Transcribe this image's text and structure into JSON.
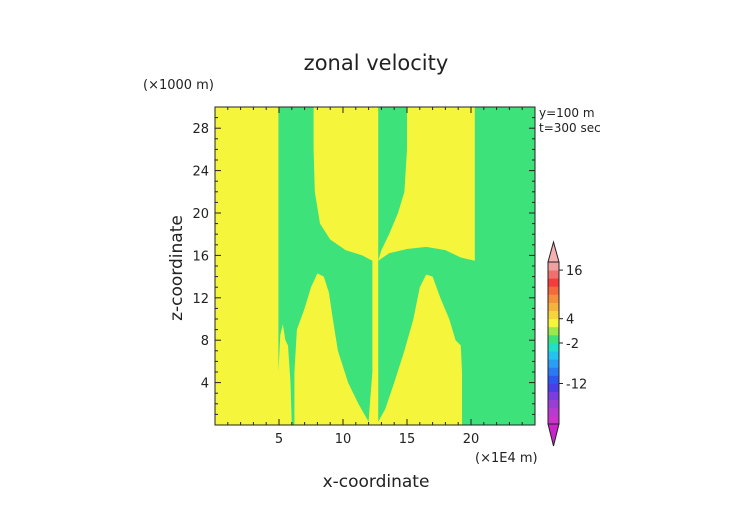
{
  "chart_data": {
    "type": "heatmap",
    "title": "zonal velocity",
    "xlabel": "x-coordinate",
    "ylabel": "z-coordinate",
    "x_unit": "(×1E4 m)",
    "y_unit": "(×1000 m)",
    "annotations": [
      "y=100 m",
      "t=300 sec"
    ],
    "xlim": [
      0,
      25
    ],
    "ylim": [
      0,
      30
    ],
    "x_ticks": [
      5,
      10,
      15,
      20
    ],
    "y_ticks": [
      4,
      8,
      12,
      16,
      20,
      24,
      28
    ],
    "field_colors": {
      "positive": "#f5f53c",
      "negative": "#3ee27b"
    },
    "colorbar": {
      "tick_labels": [
        "16",
        "4",
        "-2",
        "-12"
      ],
      "levels": [
        {
          "value": -20,
          "color": "#cc33cc"
        },
        {
          "value": -18,
          "color": "#b83ad0"
        },
        {
          "value": -16,
          "color": "#9a3ed8"
        },
        {
          "value": -14,
          "color": "#7a3ee0"
        },
        {
          "value": -12,
          "color": "#4a3ee8"
        },
        {
          "value": -10,
          "color": "#2e56f0"
        },
        {
          "value": -8,
          "color": "#2a7af4"
        },
        {
          "value": -6,
          "color": "#2a9ef4"
        },
        {
          "value": -4,
          "color": "#22c4ee"
        },
        {
          "value": -2,
          "color": "#22e0c8"
        },
        {
          "value": 0,
          "color": "#3ee27b"
        },
        {
          "value": 2,
          "color": "#9ae84a"
        },
        {
          "value": 4,
          "color": "#f5f53c"
        },
        {
          "value": 6,
          "color": "#f5d43c"
        },
        {
          "value": 8,
          "color": "#f5b23c"
        },
        {
          "value": 10,
          "color": "#f5903c"
        },
        {
          "value": 12,
          "color": "#f56a3c"
        },
        {
          "value": 14,
          "color": "#f53c3c"
        },
        {
          "value": 16,
          "color": "#f07070"
        },
        {
          "value": 18,
          "color": "#f0a0a0"
        }
      ],
      "low_extend_color": "#cc22cc",
      "high_extend_color": "#f5b0b0"
    },
    "regions": [
      {
        "sign": "negative",
        "polygon": [
          [
            4.95,
            30
          ],
          [
            7.7,
            30
          ],
          [
            7.7,
            26
          ],
          [
            7.8,
            22
          ],
          [
            8.2,
            19
          ],
          [
            9.0,
            17.5
          ],
          [
            10.2,
            16.5
          ],
          [
            11.5,
            16
          ],
          [
            12.3,
            15.5
          ],
          [
            12.3,
            5
          ],
          [
            12.1,
            2
          ],
          [
            12.0,
            0.3
          ],
          [
            11.2,
            2
          ],
          [
            10.4,
            4
          ],
          [
            9.6,
            7
          ],
          [
            9.2,
            10
          ],
          [
            8.9,
            12.5
          ],
          [
            8.5,
            14
          ],
          [
            8.0,
            14.3
          ],
          [
            7.5,
            13
          ],
          [
            7.0,
            11
          ],
          [
            6.4,
            9
          ],
          [
            6.2,
            5
          ],
          [
            6.2,
            0
          ],
          [
            6.0,
            0
          ],
          [
            5.9,
            4
          ],
          [
            5.7,
            7.5
          ],
          [
            5.5,
            8
          ],
          [
            5.3,
            9.5
          ],
          [
            5.1,
            8.5
          ],
          [
            4.95,
            5
          ],
          [
            4.95,
            0
          ],
          [
            4.95,
            30
          ]
        ]
      },
      {
        "sign": "negative",
        "polygon": [
          [
            12.75,
            30
          ],
          [
            15.0,
            30
          ],
          [
            15.0,
            26
          ],
          [
            14.8,
            22
          ],
          [
            14.3,
            20
          ],
          [
            13.6,
            18
          ],
          [
            13.0,
            16.5
          ],
          [
            12.75,
            15.5
          ]
        ]
      },
      {
        "sign": "negative",
        "polygon": [
          [
            12.75,
            15.5
          ],
          [
            13.6,
            16.2
          ],
          [
            15.0,
            16.6
          ],
          [
            16.5,
            16.8
          ],
          [
            18.0,
            16.5
          ],
          [
            19.2,
            15.8
          ],
          [
            20.3,
            15.5
          ],
          [
            20.3,
            30
          ],
          [
            25,
            30
          ],
          [
            25,
            0
          ],
          [
            19.3,
            0
          ],
          [
            19.3,
            5
          ],
          [
            19.2,
            7.5
          ],
          [
            18.8,
            8
          ],
          [
            18.3,
            10
          ],
          [
            17.6,
            12
          ],
          [
            17.0,
            14
          ],
          [
            16.5,
            14.2
          ],
          [
            16.0,
            13
          ],
          [
            15.5,
            10
          ],
          [
            14.8,
            7
          ],
          [
            14.0,
            4
          ],
          [
            13.3,
            1.5
          ],
          [
            12.75,
            0.3
          ]
        ]
      }
    ]
  }
}
